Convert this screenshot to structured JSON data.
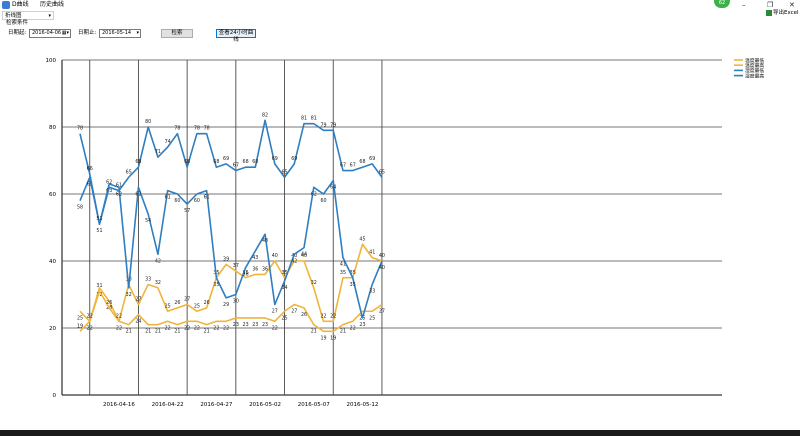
{
  "window": {
    "title": "D曲线",
    "subtitle": "历史曲线",
    "badge": "62",
    "min": "–",
    "max": "❐",
    "close": "✕"
  },
  "toolbar": {
    "chart_type": "折线图",
    "conditions_label": "检索条件",
    "start_label": "日期起:",
    "start_value": "2016-04-06",
    "end_label": "日期止:",
    "end_value": "2016-05-14",
    "search_button": "检索",
    "view24_button": "查看24小时曲线",
    "export_button": "导出Excel"
  },
  "colors": {
    "orange": "#f0b43a",
    "blue": "#2f7ec1",
    "grid": "#a9a9a9",
    "major": "#4a4a4a"
  },
  "chart_data": {
    "type": "line",
    "x_start": "2016-04-12",
    "x_end": "2016-05-14",
    "ylim": [
      0,
      100
    ],
    "yticks": [
      0,
      20,
      40,
      60,
      80,
      100
    ],
    "xtick_labels": [
      "2016-04-16",
      "2016-04-22",
      "2016-04-27",
      "2016-05-02",
      "2016-05-07",
      "2016-05-12"
    ],
    "series": [
      {
        "name": "温度最低",
        "color": "#f0b43a",
        "values": [
          25,
          22,
          32,
          28,
          22,
          21,
          24,
          21,
          21,
          22,
          21,
          22,
          22,
          21,
          22,
          22,
          23,
          23,
          23,
          23,
          22,
          25,
          27,
          26,
          21,
          19,
          19,
          21,
          22,
          25,
          25,
          27
        ]
      },
      {
        "name": "温度最高",
        "color": "#f0b43a",
        "values": [
          19,
          22,
          31,
          26,
          22,
          33,
          27,
          33,
          32,
          25,
          26,
          27,
          25,
          26,
          35,
          39,
          37,
          35,
          36,
          36,
          40,
          35,
          40,
          40,
          32,
          22,
          22,
          35,
          35,
          45,
          41,
          40
        ]
      },
      {
        "name": "湿度最低",
        "color": "#2f7ec1",
        "values": [
          58,
          65,
          51,
          63,
          62,
          32,
          62,
          54,
          42,
          61,
          60,
          57,
          60,
          61,
          35,
          29,
          30,
          38,
          43,
          48,
          27,
          34,
          42,
          44,
          62,
          60,
          64,
          41,
          35,
          23,
          33,
          40
        ]
      },
      {
        "name": "湿度最高",
        "color": "#2f7ec1",
        "values": [
          78,
          66,
          51,
          62,
          61,
          65,
          68,
          80,
          71,
          74,
          78,
          68,
          78,
          78,
          68,
          69,
          67,
          68,
          68,
          82,
          69,
          65,
          69,
          81,
          81,
          79,
          79,
          67,
          67,
          68,
          69,
          65
        ]
      }
    ]
  }
}
